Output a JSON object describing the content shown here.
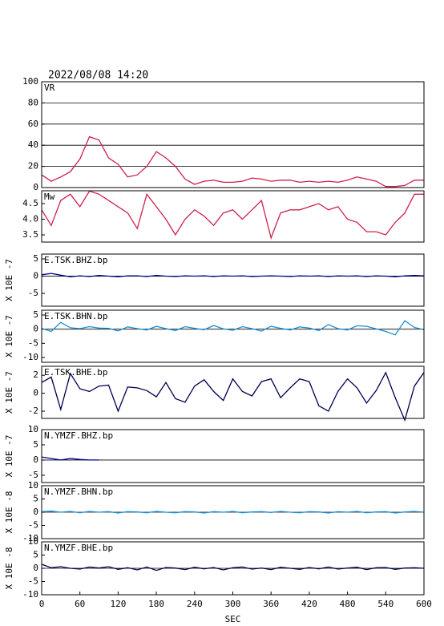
{
  "chart_data": [
    {
      "type": "line",
      "title": "2022/08/08 14:20",
      "label": "VR",
      "color": "#d0204a",
      "grid": true,
      "x": [
        0,
        15,
        30,
        45,
        60,
        75,
        90,
        105,
        120,
        135,
        150,
        165,
        180,
        195,
        210,
        225,
        240,
        255,
        270,
        285,
        300,
        315,
        330,
        345,
        360,
        375,
        390,
        405,
        420,
        435,
        450,
        465,
        480,
        495,
        510,
        525,
        540,
        555,
        570,
        585,
        600
      ],
      "values": [
        12,
        6,
        10,
        15,
        27,
        48,
        45,
        28,
        22,
        10,
        12,
        20,
        34,
        28,
        20,
        8,
        3,
        6,
        7,
        5,
        5,
        6,
        9,
        8,
        6,
        7,
        7,
        5,
        6,
        5,
        6,
        5,
        7,
        10,
        8,
        6,
        1,
        1,
        2,
        7,
        7
      ],
      "xlim": [
        0,
        600
      ],
      "ylim": [
        0,
        100
      ],
      "yticks": [
        0,
        20,
        40,
        60,
        80,
        100
      ]
    },
    {
      "type": "line",
      "label": "Mw",
      "color": "#d0204a",
      "x": [
        0,
        15,
        30,
        45,
        60,
        75,
        90,
        105,
        120,
        135,
        150,
        165,
        180,
        195,
        210,
        225,
        240,
        255,
        270,
        285,
        300,
        315,
        330,
        345,
        360,
        375,
        390,
        405,
        420,
        435,
        450,
        465,
        480,
        495,
        510,
        525,
        540,
        555,
        570,
        585,
        600
      ],
      "values": [
        4.3,
        3.8,
        4.6,
        4.8,
        4.4,
        4.9,
        4.8,
        4.6,
        4.4,
        4.2,
        3.7,
        4.8,
        4.4,
        4.0,
        3.5,
        4.0,
        4.3,
        4.1,
        3.8,
        4.2,
        4.3,
        4.0,
        4.3,
        4.6,
        3.4,
        4.2,
        4.3,
        4.3,
        4.4,
        4.5,
        4.3,
        4.4,
        4.0,
        3.9,
        3.6,
        3.6,
        3.5,
        3.9,
        4.2,
        4.8,
        4.8
      ],
      "xlim": [
        0,
        600
      ],
      "ylim": [
        3.27,
        4.91
      ],
      "yticks": [
        3.5,
        {
          "value": 4.0,
          "label": "4.0"
        },
        4.5
      ]
    },
    {
      "type": "line",
      "label": "E.TSK.BHZ.bp",
      "ylabel": "X 10E -7",
      "color": "#00008b",
      "zero_line": true,
      "x": [
        0,
        15,
        30,
        45,
        60,
        75,
        90,
        105,
        120,
        135,
        150,
        165,
        180,
        195,
        210,
        225,
        240,
        255,
        270,
        285,
        300,
        315,
        330,
        345,
        360,
        375,
        390,
        405,
        420,
        435,
        450,
        465,
        480,
        495,
        510,
        525,
        540,
        555,
        570,
        585,
        600
      ],
      "values": [
        0.4,
        0.8,
        0.3,
        -0.2,
        0.1,
        -0.1,
        0.2,
        0,
        -0.2,
        0.1,
        0.1,
        -0.1,
        0.2,
        0,
        -0.1,
        0.1,
        0,
        0.1,
        -0.1,
        0.1,
        0,
        0.1,
        -0.1,
        0,
        0.1,
        0,
        -0.1,
        0.1,
        0,
        0.1,
        -0.1,
        0.1,
        0,
        0.1,
        -0.1,
        0.1,
        0,
        -0.2,
        0.1,
        0.2,
        0.1
      ],
      "xlim": [
        0,
        600
      ],
      "ylim": [
        -8.7,
        6.4
      ],
      "yticks": [
        -5,
        0,
        5
      ]
    },
    {
      "type": "line",
      "label": "E.TSK.BHN.bp",
      "ylabel": "X 10E -7",
      "color": "#1e8fd0",
      "zero_line": true,
      "x": [
        0,
        15,
        30,
        45,
        60,
        75,
        90,
        105,
        120,
        135,
        150,
        165,
        180,
        195,
        210,
        225,
        240,
        255,
        270,
        285,
        300,
        315,
        330,
        345,
        360,
        375,
        390,
        405,
        420,
        435,
        450,
        465,
        480,
        495,
        510,
        525,
        540,
        555,
        570,
        585,
        600
      ],
      "values": [
        0.3,
        -0.8,
        2.4,
        0.5,
        0.2,
        0.9,
        0.4,
        0.3,
        -0.6,
        0.8,
        0.2,
        -0.3,
        1.0,
        0.2,
        -0.5,
        0.9,
        0.3,
        -0.2,
        1.3,
        0.1,
        -0.4,
        0.9,
        0.2,
        -0.7,
        1.0,
        0.3,
        -0.3,
        0.8,
        0.4,
        -0.5,
        1.6,
        0.2,
        -0.3,
        1.2,
        1.0,
        0.1,
        -0.8,
        -2.0,
        3.0,
        0.6,
        -0.2
      ],
      "xlim": [
        0,
        600
      ],
      "ylim": [
        -11.7,
        6.7
      ],
      "yticks": [
        -10,
        -5,
        0,
        5
      ]
    },
    {
      "type": "line",
      "label": "E.TSK.BHE.bp",
      "ylabel": "X 10E -7",
      "color": "#000050",
      "zero_line": false,
      "x": [
        0,
        15,
        30,
        45,
        60,
        75,
        90,
        105,
        120,
        135,
        150,
        165,
        180,
        195,
        210,
        225,
        240,
        255,
        270,
        285,
        300,
        315,
        330,
        345,
        360,
        375,
        390,
        405,
        420,
        435,
        450,
        465,
        480,
        495,
        510,
        525,
        540,
        555,
        570,
        585,
        600
      ],
      "values": [
        1.2,
        1.8,
        -1.8,
        2.2,
        0.5,
        0.2,
        0.8,
        0.9,
        -2,
        0.7,
        0.6,
        0.3,
        -0.4,
        1.2,
        -0.6,
        -1,
        0.8,
        1.5,
        0.2,
        -0.8,
        1.6,
        0.2,
        -0.3,
        1.3,
        1.6,
        -0.5,
        0.6,
        1.6,
        1.3,
        -1.4,
        -2,
        0.2,
        1.6,
        0.6,
        -1.1,
        0.3,
        2.3,
        -0.5,
        -3,
        0.8,
        2.3
      ],
      "xlim": [
        0,
        600
      ],
      "ylim": [
        -2.8,
        3.0
      ],
      "yticks": [
        -2,
        0,
        2
      ]
    },
    {
      "type": "line",
      "label": "N.YMZF.BHZ.bp",
      "ylabel": "X 10E -7",
      "color": "#00008b",
      "zero_line": true,
      "x": [
        0,
        15,
        30,
        45,
        60,
        75,
        90,
        105,
        120,
        135,
        150,
        165,
        180,
        195,
        210,
        225,
        240,
        255,
        270,
        285,
        300,
        315,
        330,
        345,
        360,
        375,
        390,
        405,
        420,
        435,
        450,
        465,
        480,
        495,
        510,
        525,
        540,
        555,
        570,
        585,
        600
      ],
      "values": [
        1,
        0.5,
        0,
        0.5,
        0.2,
        0,
        0,
        null,
        null,
        null,
        null,
        null,
        null,
        null,
        null,
        null,
        null,
        null,
        null,
        null,
        null,
        null,
        null,
        null,
        null,
        null,
        null,
        null,
        null,
        null,
        null,
        null,
        null,
        null,
        null,
        null,
        null,
        null,
        null,
        null,
        null
      ],
      "xlim": [
        0,
        600
      ],
      "ylim": [
        -7.4,
        10
      ],
      "yticks": [
        -5,
        0,
        5,
        10
      ]
    },
    {
      "type": "line",
      "label": "N.YMZF.BHN.bp",
      "ylabel": "X 10E -8",
      "color": "#1e8fd0",
      "zero_line": true,
      "x": [
        0,
        15,
        30,
        45,
        60,
        75,
        90,
        105,
        120,
        135,
        150,
        165,
        180,
        195,
        210,
        225,
        240,
        255,
        270,
        285,
        300,
        315,
        330,
        345,
        360,
        375,
        390,
        405,
        420,
        435,
        450,
        465,
        480,
        495,
        510,
        525,
        540,
        555,
        570,
        585,
        600
      ],
      "values": [
        0.2,
        0.4,
        0,
        0.3,
        -0.2,
        0.3,
        0,
        0.2,
        -0.3,
        0.2,
        0.1,
        -0.2,
        0.3,
        0,
        -0.2,
        0.2,
        0.1,
        -0.3,
        0.2,
        0,
        0.3,
        -0.2,
        0.1,
        0.2,
        -0.1,
        0.3,
        0,
        -0.2,
        0.2,
        0.1,
        -0.3,
        0.2,
        0,
        0.3,
        -0.2,
        0.1,
        0.2,
        -0.3,
        0.1,
        0.3,
        0
      ],
      "xlim": [
        0,
        600
      ],
      "ylim": [
        -10,
        10
      ],
      "yticks": [
        -10,
        -5,
        0,
        5,
        10
      ]
    },
    {
      "type": "line",
      "label": "N.YMZF.BHE.bp",
      "ylabel": "X 10E -8",
      "color": "#000050",
      "zero_line": true,
      "x": [
        0,
        15,
        30,
        45,
        60,
        75,
        90,
        105,
        120,
        135,
        150,
        165,
        180,
        195,
        210,
        225,
        240,
        255,
        270,
        285,
        300,
        315,
        330,
        345,
        360,
        375,
        390,
        405,
        420,
        435,
        450,
        465,
        480,
        495,
        510,
        525,
        540,
        555,
        570,
        585,
        600
      ],
      "values": [
        1.5,
        0.2,
        0.6,
        0,
        -0.3,
        0.5,
        0.1,
        0.6,
        -0.4,
        0.2,
        -0.6,
        0.5,
        -0.8,
        0.3,
        0.1,
        -0.5,
        0.4,
        -0.2,
        0.3,
        -0.6,
        0.2,
        0.5,
        -0.3,
        0.1,
        -0.5,
        0.4,
        0,
        -0.4,
        0.3,
        -0.2,
        0.5,
        -0.3,
        0.1,
        0.4,
        -0.5,
        0.2,
        0.3,
        -0.4,
        0.1,
        0.2,
        0
      ],
      "xlim": [
        0,
        600
      ],
      "ylim": [
        -10,
        10
      ],
      "yticks": [
        -10,
        -5,
        0,
        5,
        10
      ],
      "xticks": [
        0,
        60,
        120,
        180,
        240,
        300,
        360,
        420,
        480,
        540,
        600
      ],
      "xlabel": "SEC"
    }
  ]
}
